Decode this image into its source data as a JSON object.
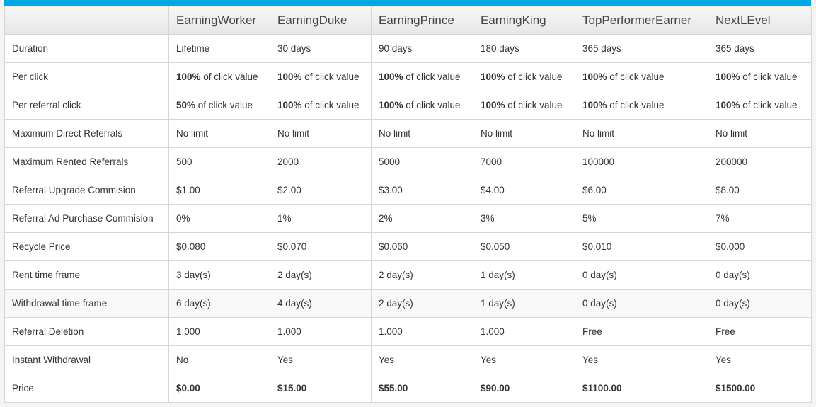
{
  "headers": [
    "",
    "EarningWorker",
    "EarningDuke",
    "EarningPrince",
    "EarningKing",
    "TopPerformerEarner",
    "NextLEvel"
  ],
  "rows": [
    {
      "label": "Duration",
      "cells": [
        {
          "text": "Lifetime"
        },
        {
          "text": "30 days"
        },
        {
          "text": "90 days"
        },
        {
          "text": "180 days"
        },
        {
          "text": "365 days"
        },
        {
          "text": "365 days"
        }
      ]
    },
    {
      "label": "Per click",
      "cells": [
        {
          "bold": "100%",
          "text": " of click value"
        },
        {
          "bold": "100%",
          "text": " of click value"
        },
        {
          "bold": "100%",
          "text": " of click value"
        },
        {
          "bold": "100%",
          "text": " of click value"
        },
        {
          "bold": "100%",
          "text": " of click value"
        },
        {
          "bold": "100%",
          "text": " of click value"
        }
      ]
    },
    {
      "label": "Per referral click",
      "cells": [
        {
          "bold": "50%",
          "text": " of click value"
        },
        {
          "bold": "100%",
          "text": " of click value"
        },
        {
          "bold": "100%",
          "text": " of click value"
        },
        {
          "bold": "100%",
          "text": " of click value"
        },
        {
          "bold": "100%",
          "text": " of click value"
        },
        {
          "bold": "100%",
          "text": " of click value"
        }
      ]
    },
    {
      "label": "Maximum Direct Referrals",
      "cells": [
        {
          "text": "No limit"
        },
        {
          "text": "No limit"
        },
        {
          "text": "No limit"
        },
        {
          "text": "No limit"
        },
        {
          "text": "No limit"
        },
        {
          "text": "No limit"
        }
      ]
    },
    {
      "label": "Maximum Rented Referrals",
      "cells": [
        {
          "text": "500"
        },
        {
          "text": "2000"
        },
        {
          "text": "5000"
        },
        {
          "text": "7000"
        },
        {
          "text": "100000"
        },
        {
          "text": "200000"
        }
      ]
    },
    {
      "label": "Referral Upgrade Commision",
      "cells": [
        {
          "text": "$1.00"
        },
        {
          "text": "$2.00"
        },
        {
          "text": "$3.00"
        },
        {
          "text": "$4.00"
        },
        {
          "text": "$6.00"
        },
        {
          "text": "$8.00"
        }
      ]
    },
    {
      "label": "Referral Ad Purchase Commision",
      "cells": [
        {
          "text": "0%"
        },
        {
          "text": "1%"
        },
        {
          "text": "2%"
        },
        {
          "text": "3%"
        },
        {
          "text": "5%"
        },
        {
          "text": "7%"
        }
      ]
    },
    {
      "label": "Recycle Price",
      "cells": [
        {
          "text": "$0.080"
        },
        {
          "text": "$0.070"
        },
        {
          "text": "$0.060"
        },
        {
          "text": "$0.050"
        },
        {
          "text": "$0.010"
        },
        {
          "text": "$0.000"
        }
      ]
    },
    {
      "label": "Rent time frame",
      "cells": [
        {
          "text": "3 day(s)"
        },
        {
          "text": "2 day(s)"
        },
        {
          "text": "2 day(s)"
        },
        {
          "text": "1 day(s)"
        },
        {
          "text": "0 day(s)"
        },
        {
          "text": "0 day(s)"
        }
      ]
    },
    {
      "label": "Withdrawal time frame",
      "hover": true,
      "cells": [
        {
          "text": "6 day(s)"
        },
        {
          "text": "4 day(s)"
        },
        {
          "text": "2 day(s)"
        },
        {
          "text": "1 day(s)"
        },
        {
          "text": "0 day(s)"
        },
        {
          "text": "0 day(s)"
        }
      ]
    },
    {
      "label": "Referral Deletion",
      "cells": [
        {
          "text": "1.000"
        },
        {
          "text": "1.000"
        },
        {
          "text": "1.000"
        },
        {
          "text": "1.000"
        },
        {
          "text": "Free"
        },
        {
          "text": "Free"
        }
      ]
    },
    {
      "label": "Instant Withdrawal",
      "cells": [
        {
          "text": "No"
        },
        {
          "text": "Yes"
        },
        {
          "text": "Yes"
        },
        {
          "text": "Yes"
        },
        {
          "text": "Yes"
        },
        {
          "text": "Yes"
        }
      ]
    },
    {
      "label": "Price",
      "cells": [
        {
          "bold": "$0.00"
        },
        {
          "bold": "$15.00"
        },
        {
          "bold": "$55.00"
        },
        {
          "bold": "$90.00"
        },
        {
          "bold": "$1100.00"
        },
        {
          "bold": "$1500.00"
        }
      ]
    }
  ],
  "colors": {
    "accent": "#00a8e1"
  }
}
